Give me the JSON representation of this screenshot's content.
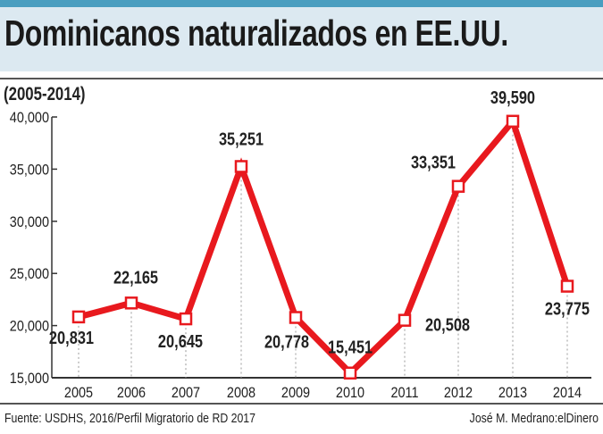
{
  "title": "Dominicanos naturalizados en EE.UU.",
  "subtitle": "(2005-2014)",
  "footer": {
    "source": "Fuente: USDHS, 2016/Perfil Migratorio de RD 2017",
    "credit": "José M. Medrano:elDinero"
  },
  "colors": {
    "line": "#e8191e",
    "header_band": "#dce9f1",
    "top_bar": "#4a9ec0"
  },
  "chart_data": {
    "type": "line",
    "title": "Dominicanos naturalizados en EE.UU.",
    "subtitle": "(2005-2014)",
    "categories": [
      "2005",
      "2006",
      "2007",
      "2008",
      "2009",
      "2010",
      "2011",
      "2012",
      "2013",
      "2014"
    ],
    "values": [
      20831,
      22165,
      20645,
      35251,
      20778,
      15451,
      20508,
      33351,
      39590,
      23775
    ],
    "data_labels": [
      "20,831",
      "22,165",
      "20,645",
      "35,251",
      "20,778",
      "15,451",
      "20,508",
      "33,351",
      "39,590",
      "23,775"
    ],
    "ylim": [
      15000,
      40000
    ],
    "yticks": [
      15000,
      20000,
      25000,
      30000,
      35000,
      40000
    ],
    "ytick_labels": [
      "15,000",
      "20,000",
      "25,000",
      "30,000",
      "35,000",
      "40,000"
    ],
    "grid": "dotted vertical drop lines",
    "marker": "hollow square"
  }
}
